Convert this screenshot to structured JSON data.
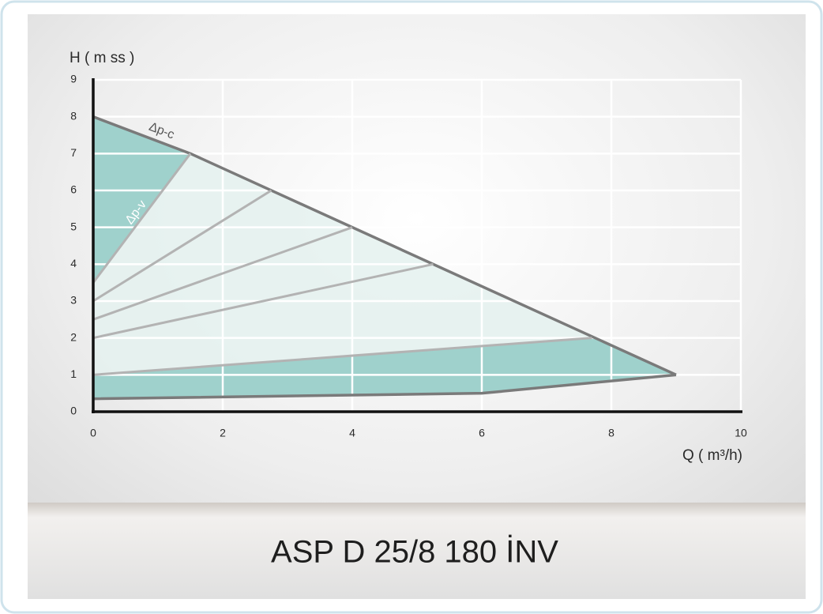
{
  "chart_data": {
    "type": "line",
    "title": "ASP D 25/8 180 İNV",
    "y_label": "H ( m ss )",
    "x_label": "Q ( m³/h)",
    "xlim": [
      0,
      10
    ],
    "xticks": [
      0,
      2,
      4,
      6,
      8,
      10
    ],
    "ylim": [
      0,
      9
    ],
    "yticks": [
      0,
      1,
      2,
      3,
      4,
      5,
      6,
      7,
      8,
      9
    ],
    "grid": true,
    "series": [
      {
        "name": "Δp-c",
        "color": "#7a7a7a",
        "x": [
          0,
          1.5,
          9
        ],
        "values": [
          8,
          7,
          1
        ]
      },
      {
        "name": "Δp-v",
        "color": "#b3b3b3",
        "x": [
          0,
          1.5
        ],
        "values": [
          3.5,
          7
        ]
      },
      {
        "color": "#b3b3b3",
        "x": [
          0,
          2.75
        ],
        "values": [
          3,
          6
        ]
      },
      {
        "color": "#b3b3b3",
        "x": [
          0,
          4
        ],
        "values": [
          2.5,
          5
        ]
      },
      {
        "color": "#b3b3b3",
        "x": [
          0,
          5.25
        ],
        "values": [
          2,
          4
        ]
      },
      {
        "color": "#b3b3b3",
        "x": [
          0,
          7.7
        ],
        "values": [
          1,
          2
        ]
      },
      {
        "color": "#7a7a7a",
        "x": [
          0,
          6,
          9
        ],
        "values": [
          0.35,
          0.5,
          1
        ]
      }
    ]
  }
}
